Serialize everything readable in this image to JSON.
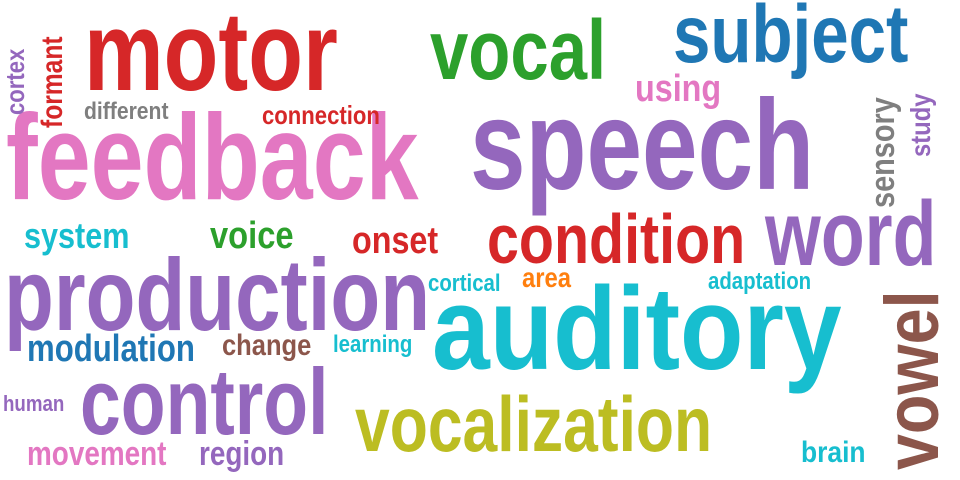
{
  "words": {
    "motor": {
      "text": "motor",
      "color": "#d62728"
    },
    "vocal": {
      "text": "vocal",
      "color": "#2ca02c"
    },
    "subject": {
      "text": "subject",
      "color": "#1f77b4"
    },
    "feedback": {
      "text": "feedback",
      "color": "#e377c2"
    },
    "speech": {
      "text": "speech",
      "color": "#9467bd"
    },
    "word": {
      "text": "word",
      "color": "#9467bd"
    },
    "condition": {
      "text": "condition",
      "color": "#d62728"
    },
    "production": {
      "text": "production",
      "color": "#9467bd"
    },
    "auditory": {
      "text": "auditory",
      "color": "#17becf"
    },
    "control": {
      "text": "control",
      "color": "#9467bd"
    },
    "vocalization": {
      "text": "vocalization",
      "color": "#bcbd22"
    },
    "vowel": {
      "text": "vowel",
      "color": "#8c564b"
    },
    "cortex": {
      "text": "cortex",
      "color": "#9467bd"
    },
    "formant": {
      "text": "formant",
      "color": "#d62728"
    },
    "different": {
      "text": "different",
      "color": "#7f7f7f"
    },
    "connection": {
      "text": "connection",
      "color": "#d62728"
    },
    "using": {
      "text": "using",
      "color": "#e377c2"
    },
    "sensory": {
      "text": "sensory",
      "color": "#7f7f7f"
    },
    "study": {
      "text": "study",
      "color": "#9467bd"
    },
    "system": {
      "text": "system",
      "color": "#17becf"
    },
    "voice": {
      "text": "voice",
      "color": "#2ca02c"
    },
    "onset": {
      "text": "onset",
      "color": "#d62728"
    },
    "cortical": {
      "text": "cortical",
      "color": "#17becf"
    },
    "area": {
      "text": "area",
      "color": "#ff7f0e"
    },
    "adaptation": {
      "text": "adaptation",
      "color": "#17becf"
    },
    "modulation": {
      "text": "modulation",
      "color": "#1f77b4"
    },
    "change": {
      "text": "change",
      "color": "#8c564b"
    },
    "learning": {
      "text": "learning",
      "color": "#17becf"
    },
    "human": {
      "text": "human",
      "color": "#9467bd"
    },
    "movement": {
      "text": "movement",
      "color": "#e377c2"
    },
    "region": {
      "text": "region",
      "color": "#9467bd"
    },
    "brain": {
      "text": "brain",
      "color": "#17becf"
    }
  }
}
